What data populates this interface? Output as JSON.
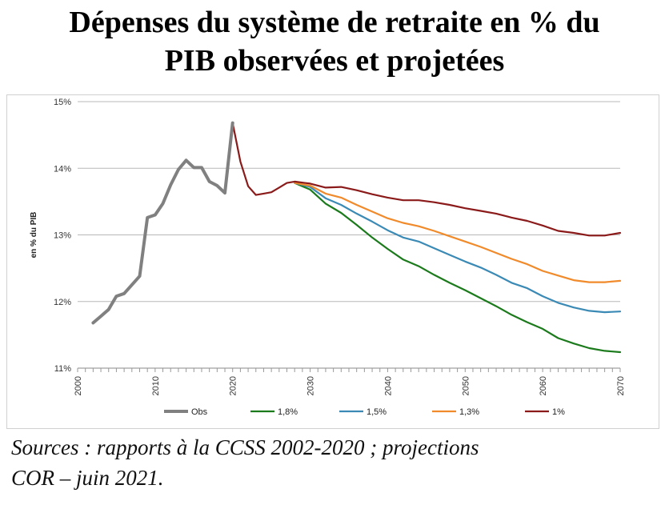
{
  "title_line1": "Dépenses du système de retraite en % du",
  "title_line2": "PIB observées et projetées",
  "source_line1": "Sources : rapports à la CCSS 2002-2020 ; projections",
  "source_line2": "COR – juin 2021.",
  "chart_data": {
    "type": "line",
    "ylabel": "en % du PIB",
    "ylim": [
      11,
      15
    ],
    "xlim": [
      2000,
      2070
    ],
    "yticks": [
      "11%",
      "12%",
      "13%",
      "14%",
      "15%"
    ],
    "xticks": [
      "2000",
      "2010",
      "2020",
      "2030",
      "2040",
      "2050",
      "2060",
      "2070"
    ],
    "grid": "horizontal",
    "legend_position": "bottom",
    "series": [
      {
        "name": "Obs",
        "color": "#808080",
        "points": [
          [
            2002,
            11.68
          ],
          [
            2003,
            11.78
          ],
          [
            2004,
            11.88
          ],
          [
            2005,
            12.08
          ],
          [
            2006,
            12.12
          ],
          [
            2007,
            12.25
          ],
          [
            2008,
            12.38
          ],
          [
            2009,
            13.26
          ],
          [
            2010,
            13.3
          ],
          [
            2011,
            13.47
          ],
          [
            2012,
            13.75
          ],
          [
            2013,
            13.98
          ],
          [
            2014,
            14.12
          ],
          [
            2015,
            14.01
          ],
          [
            2016,
            14.01
          ],
          [
            2017,
            13.8
          ],
          [
            2018,
            13.74
          ],
          [
            2019,
            13.63
          ],
          [
            2020,
            14.68
          ]
        ]
      },
      {
        "name": "1,8%",
        "color": "#1b7a1b",
        "points": [
          [
            2028,
            13.78
          ],
          [
            2030,
            13.68
          ],
          [
            2032,
            13.47
          ],
          [
            2034,
            13.33
          ],
          [
            2036,
            13.15
          ],
          [
            2038,
            12.96
          ],
          [
            2040,
            12.79
          ],
          [
            2042,
            12.63
          ],
          [
            2044,
            12.53
          ],
          [
            2046,
            12.4
          ],
          [
            2048,
            12.28
          ],
          [
            2050,
            12.17
          ],
          [
            2052,
            12.05
          ],
          [
            2054,
            11.93
          ],
          [
            2056,
            11.8
          ],
          [
            2058,
            11.69
          ],
          [
            2060,
            11.59
          ],
          [
            2062,
            11.45
          ],
          [
            2064,
            11.37
          ],
          [
            2066,
            11.3
          ],
          [
            2068,
            11.26
          ],
          [
            2070,
            11.24
          ]
        ]
      },
      {
        "name": "1,5%",
        "color": "#3a8ab5",
        "points": [
          [
            2028,
            13.78
          ],
          [
            2030,
            13.72
          ],
          [
            2032,
            13.55
          ],
          [
            2034,
            13.45
          ],
          [
            2036,
            13.32
          ],
          [
            2038,
            13.2
          ],
          [
            2040,
            13.07
          ],
          [
            2042,
            12.96
          ],
          [
            2044,
            12.9
          ],
          [
            2046,
            12.8
          ],
          [
            2048,
            12.7
          ],
          [
            2050,
            12.6
          ],
          [
            2052,
            12.51
          ],
          [
            2054,
            12.4
          ],
          [
            2056,
            12.28
          ],
          [
            2058,
            12.2
          ],
          [
            2060,
            12.08
          ],
          [
            2062,
            11.98
          ],
          [
            2064,
            11.91
          ],
          [
            2066,
            11.86
          ],
          [
            2068,
            11.84
          ],
          [
            2070,
            11.85
          ]
        ]
      },
      {
        "name": "1,3%",
        "color": "#f08a2a",
        "points": [
          [
            2028,
            13.78
          ],
          [
            2030,
            13.74
          ],
          [
            2032,
            13.62
          ],
          [
            2034,
            13.56
          ],
          [
            2036,
            13.45
          ],
          [
            2038,
            13.35
          ],
          [
            2040,
            13.25
          ],
          [
            2042,
            13.18
          ],
          [
            2044,
            13.13
          ],
          [
            2046,
            13.06
          ],
          [
            2048,
            12.98
          ],
          [
            2050,
            12.9
          ],
          [
            2052,
            12.82
          ],
          [
            2054,
            12.73
          ],
          [
            2056,
            12.64
          ],
          [
            2058,
            12.56
          ],
          [
            2060,
            12.46
          ],
          [
            2062,
            12.39
          ],
          [
            2064,
            12.32
          ],
          [
            2066,
            12.29
          ],
          [
            2068,
            12.29
          ],
          [
            2070,
            12.31
          ]
        ]
      },
      {
        "name": "1%",
        "color": "#8b1a1a",
        "points": [
          [
            2020,
            14.68
          ],
          [
            2021,
            14.1
          ],
          [
            2022,
            13.73
          ],
          [
            2023,
            13.6
          ],
          [
            2024,
            13.62
          ],
          [
            2025,
            13.64
          ],
          [
            2026,
            13.71
          ],
          [
            2027,
            13.78
          ],
          [
            2028,
            13.8
          ],
          [
            2030,
            13.77
          ],
          [
            2032,
            13.71
          ],
          [
            2034,
            13.72
          ],
          [
            2036,
            13.67
          ],
          [
            2038,
            13.61
          ],
          [
            2040,
            13.56
          ],
          [
            2042,
            13.52
          ],
          [
            2044,
            13.52
          ],
          [
            2046,
            13.49
          ],
          [
            2048,
            13.45
          ],
          [
            2050,
            13.4
          ],
          [
            2052,
            13.36
          ],
          [
            2054,
            13.32
          ],
          [
            2056,
            13.26
          ],
          [
            2058,
            13.21
          ],
          [
            2060,
            13.14
          ],
          [
            2062,
            13.06
          ],
          [
            2064,
            13.03
          ],
          [
            2066,
            12.99
          ],
          [
            2068,
            12.99
          ],
          [
            2070,
            13.03
          ]
        ]
      }
    ]
  }
}
